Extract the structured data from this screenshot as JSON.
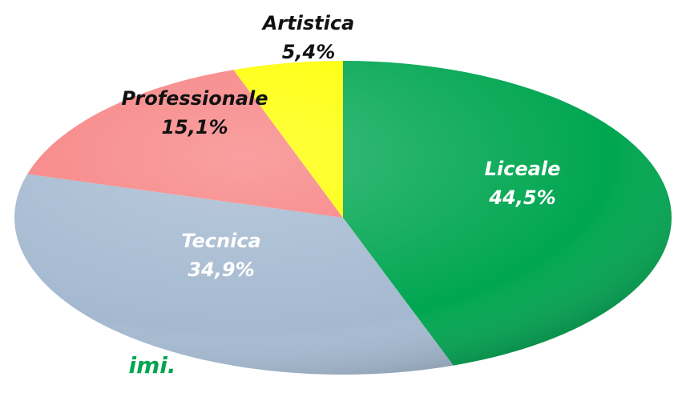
{
  "chart_data": {
    "type": "pie",
    "categories": [
      "Liceale",
      "Tecnica",
      "Professionale",
      "Artistica"
    ],
    "values": [
      44.5,
      34.9,
      15.1,
      5.4
    ],
    "value_labels": [
      "44,5%",
      "34,9%",
      "15,1%",
      "5,4%"
    ],
    "colors": [
      "#00a651",
      "#a4b9d0",
      "#f78080",
      "#ffff00"
    ],
    "label_colors": [
      "#ffffff",
      "#ffffff",
      "#111111",
      "#111111"
    ],
    "caption": "imi."
  }
}
